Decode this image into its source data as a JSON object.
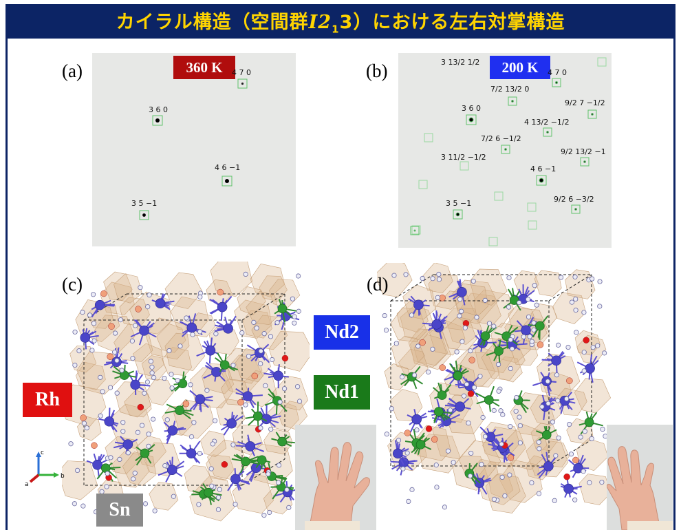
{
  "header": {
    "title_pre": "カイラル構造（空間群",
    "title_italic": "I2",
    "title_sub": "1",
    "title_post": "3）における左右対掌構造"
  },
  "panel_a": {
    "label": "(a)",
    "temperature": "360 K",
    "reflections": [
      "4 7 0",
      "3 6 0",
      "4 6 −1",
      "3 5 −1"
    ]
  },
  "panel_b": {
    "label": "(b)",
    "temperature": "200 K",
    "reflections": [
      "3  13/2  1/2",
      "4 7 0",
      "7/2 13/2 0",
      "9/2  7  −1/2",
      "3 6 0",
      "4  13/2  −1/2",
      "7/2  6  −1/2",
      "9/2  13/2  −1",
      "3  11/2  −1/2",
      "4 6 −1",
      "9/2  6  −3/2",
      "3 5 −1"
    ]
  },
  "panel_c": {
    "label": "(c)"
  },
  "panel_d": {
    "label": "(d)"
  },
  "legend": {
    "rh": "Rh",
    "nd2": "Nd2",
    "nd1": "Nd1",
    "sn": "Sn"
  },
  "axes": {
    "c": "c",
    "a": "a",
    "b": "b"
  },
  "colors": {
    "header_bg": "#0c2465",
    "header_text": "#ffd400",
    "temp_360": "#b00d0d",
    "temp_200": "#1f2ff0",
    "rh": "#e01010",
    "nd2": "#1830e8",
    "nd1": "#1a7a1a",
    "sn": "#8a8a8a"
  }
}
